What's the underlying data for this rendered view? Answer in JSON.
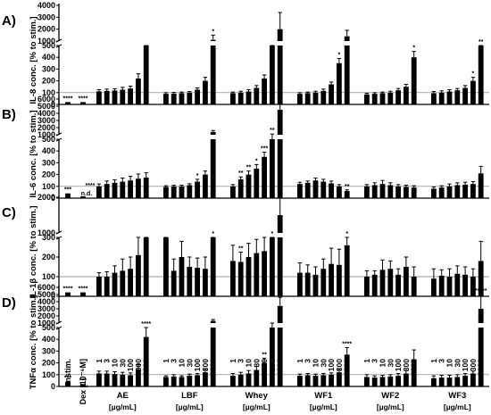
{
  "chart_data": {
    "type": "bar",
    "controls": [
      "unstim.",
      "Dex [10⁻⁶M]"
    ],
    "groups": [
      {
        "name": "AE",
        "unit": "[µg/mL]"
      },
      {
        "name": "LBF",
        "unit": "[µg/mL]"
      },
      {
        "name": "Whey",
        "unit": "[µg/mL]"
      },
      {
        "name": "WF1",
        "unit": "[µg/mL]"
      },
      {
        "name": "WF2",
        "unit": "[µg/mL]"
      },
      {
        "name": "WF3",
        "unit": "[µg/mL]"
      }
    ],
    "concentrations": [
      "1",
      "3",
      "10",
      "30",
      "100",
      "300",
      "1000"
    ],
    "panels": [
      {
        "letter": "A)",
        "ylabel": "IL-8 conc. [% to stim.]",
        "yticks_upper": [
          "1000",
          "2000",
          "3000",
          "4000"
        ],
        "yticks_lower": [
          "0",
          "100",
          "200",
          "300",
          "400",
          "500"
        ],
        "break": [
          500,
          1000
        ],
        "ymax": 4000,
        "ref": 100,
        "controls": [
          {
            "v": 20,
            "e": 0,
            "s": "****"
          },
          {
            "v": 20,
            "e": 0,
            "s": "****"
          }
        ],
        "groups": [
          {
            "v": [
              110,
              115,
              118,
              125,
              135,
              220,
              800
            ],
            "e": [
              15,
              15,
              15,
              20,
              20,
              40,
              150
            ],
            "s": [
              "",
              "",
              "",
              "",
              "",
              "",
              ""
            ]
          },
          {
            "v": [
              90,
              92,
              95,
              100,
              125,
              200,
              1100
            ],
            "e": [
              10,
              10,
              10,
              10,
              15,
              30,
              400
            ],
            "s": [
              "",
              "",
              "",
              "",
              "",
              "",
              "*"
            ]
          },
          {
            "v": [
              95,
              100,
              110,
              140,
              220,
              500,
              2000
            ],
            "e": [
              10,
              12,
              15,
              20,
              30,
              60,
              1400
            ],
            "s": [
              "",
              "",
              "",
              "",
              "",
              "",
              ""
            ]
          },
          {
            "v": [
              90,
              95,
              100,
              115,
              170,
              350,
              1400
            ],
            "e": [
              10,
              10,
              12,
              15,
              20,
              40,
              500
            ],
            "s": [
              "",
              "",
              "",
              "",
              "",
              "*",
              ""
            ]
          },
          {
            "v": [
              85,
              90,
              95,
              100,
              120,
              150,
              400
            ],
            "e": [
              10,
              10,
              10,
              12,
              15,
              20,
              50
            ],
            "s": [
              "",
              "",
              "",
              "",
              "",
              "",
              "*"
            ]
          },
          {
            "v": [
              95,
              100,
              110,
              120,
              140,
              200,
              500
            ],
            "e": [
              15,
              15,
              15,
              15,
              20,
              30,
              60
            ],
            "s": [
              "",
              "",
              "",
              "",
              "",
              "*",
              "**"
            ]
          }
        ]
      },
      {
        "letter": "B)",
        "ylabel": "IL-6 conc. [% to stim.]",
        "yticks_upper": [
          "1000",
          "2000",
          "3000",
          "4000",
          "5000",
          "6000"
        ],
        "yticks_lower": [
          "0",
          "100",
          "200",
          "300",
          "400",
          "500"
        ],
        "break": [
          500,
          1000
        ],
        "ymax": 6000,
        "ref": 100,
        "controls": [
          {
            "v": 40,
            "e": 0,
            "s": "***"
          },
          {
            "v": 15,
            "e": 0,
            "s": "****",
            "nd": "n.d."
          }
        ],
        "groups": [
          {
            "v": [
              100,
              120,
              130,
              140,
              150,
              165,
              175
            ],
            "e": [
              20,
              25,
              25,
              30,
              35,
              40,
              40
            ],
            "s": [
              "",
              "",
              "",
              "",
              "",
              "",
              ""
            ]
          },
          {
            "v": [
              95,
              100,
              100,
              110,
              140,
              200,
              1400
            ],
            "e": [
              10,
              10,
              10,
              12,
              20,
              30,
              200
            ],
            "s": [
              "",
              "",
              "",
              "",
              "*",
              "",
              ""
            ]
          },
          {
            "v": [
              100,
              160,
              200,
              250,
              350,
              900,
              4500
            ],
            "e": [
              15,
              20,
              30,
              35,
              40,
              200,
              1500
            ],
            "s": [
              "",
              "**",
              "**",
              "*",
              "***",
              "**",
              "*"
            ]
          },
          {
            "v": [
              120,
              130,
              150,
              140,
              125,
              100,
              60
            ],
            "e": [
              15,
              15,
              20,
              20,
              20,
              15,
              10
            ],
            "s": [
              "",
              "",
              "",
              "",
              "",
              "",
              "**"
            ]
          },
          {
            "v": [
              100,
              110,
              120,
              110,
              100,
              95,
              90
            ],
            "e": [
              15,
              20,
              30,
              20,
              15,
              15,
              15
            ],
            "s": [
              "",
              "",
              "",
              "",
              "",
              "",
              ""
            ]
          },
          {
            "v": [
              80,
              90,
              100,
              110,
              115,
              120,
              210
            ],
            "e": [
              15,
              15,
              20,
              20,
              20,
              20,
              60
            ],
            "s": [
              "",
              "",
              "",
              "",
              "",
              "",
              ""
            ]
          }
        ]
      },
      {
        "letter": "C)",
        "ylabel": "IL-1β conc. [% to stim.]",
        "yticks_upper": [
          "1000",
          "2000"
        ],
        "yticks_lower": [
          "0",
          "100",
          "200",
          "300"
        ],
        "break": [
          300,
          1000
        ],
        "ymax": 2000,
        "ref": 100,
        "controls": [
          {
            "v": 20,
            "e": 0,
            "s": "****"
          },
          {
            "v": 20,
            "e": 0,
            "s": "****"
          }
        ],
        "groups": [
          {
            "v": [
              100,
              100,
              120,
              130,
              140,
              210,
              500
            ],
            "e": [
              20,
              25,
              35,
              60,
              60,
              90,
              100
            ],
            "s": [
              "",
              "",
              "",
              "",
              "",
              "",
              ""
            ]
          },
          {
            "v": [
              300,
              130,
              200,
              150,
              145,
              140,
              300
            ],
            "e": [
              300,
              60,
              80,
              50,
              50,
              60,
              100
            ],
            "s": [
              "",
              "",
              "",
              "",
              "",
              "",
              "*"
            ]
          },
          {
            "v": [
              180,
              175,
              200,
              220,
              230,
              600,
              1500
            ],
            "e": [
              80,
              50,
              70,
              70,
              90,
              150,
              700
            ],
            "s": [
              "",
              "**",
              "",
              "",
              "",
              "*",
              ""
            ]
          },
          {
            "v": [
              120,
              120,
              110,
              140,
              165,
              160,
              260
            ],
            "e": [
              50,
              40,
              40,
              50,
              80,
              80,
              40
            ],
            "s": [
              "",
              "",
              "",
              "",
              "",
              "",
              "*"
            ]
          },
          {
            "v": [
              100,
              110,
              135,
              140,
              110,
              150,
              100
            ],
            "e": [
              30,
              20,
              50,
              40,
              30,
              50,
              50
            ],
            "s": [
              "",
              "",
              "",
              "",
              "",
              "",
              ""
            ]
          },
          {
            "v": [
              90,
              105,
              100,
              115,
              110,
              100,
              180
            ],
            "e": [
              50,
              30,
              40,
              40,
              40,
              40,
              100
            ],
            "s": [
              "",
              "",
              "",
              "",
              "",
              "",
              ""
            ]
          }
        ]
      },
      {
        "letter": "D)",
        "ylabel": "TNFα conc. [% to stim.]",
        "yticks_upper": [
          "1000",
          "2000",
          "3000",
          "4000",
          "5000",
          "6000"
        ],
        "yticks_lower": [
          "0",
          "100",
          "200",
          "300",
          "400",
          "500"
        ],
        "break": [
          500,
          1000
        ],
        "ymax": 6000,
        "ref": 100,
        "controls": [
          {
            "v": 40,
            "e": 0,
            "s": "***"
          },
          {
            "v": 20,
            "e": 0,
            "s": "***"
          }
        ],
        "groups": [
          {
            "v": [
              110,
              110,
              105,
              100,
              95,
              145,
              420
            ],
            "e": [
              20,
              20,
              20,
              20,
              20,
              40,
              120
            ],
            "s": [
              "",
              "",
              "",
              "",
              "",
              "",
              "****"
            ]
          },
          {
            "v": [
              80,
              85,
              80,
              90,
              95,
              120,
              1300
            ],
            "e": [
              10,
              15,
              10,
              15,
              15,
              20,
              200
            ],
            "s": [
              "",
              "",
              "",
              "",
              "",
              "",
              ""
            ]
          },
          {
            "v": [
              90,
              100,
              110,
              140,
              200,
              900,
              3400
            ],
            "e": [
              20,
              20,
              25,
              30,
              40,
              100,
              1200
            ],
            "s": [
              "",
              "",
              "",
              "",
              "**",
              "",
              ""
            ]
          },
          {
            "v": [
              90,
              95,
              90,
              95,
              100,
              120,
              270
            ],
            "e": [
              15,
              15,
              15,
              15,
              15,
              20,
              60
            ],
            "s": [
              "",
              "",
              "",
              "",
              "",
              "",
              "****"
            ]
          },
          {
            "v": [
              80,
              75,
              80,
              85,
              90,
              110,
              230
            ],
            "e": [
              20,
              15,
              15,
              15,
              20,
              25,
              80
            ],
            "s": [
              "",
              "",
              "",
              "",
              "",
              "",
              ""
            ]
          },
          {
            "v": [
              70,
              75,
              75,
              80,
              90,
              110,
              3000
            ],
            "e": [
              20,
              20,
              20,
              20,
              20,
              20,
              2000
            ],
            "s": [
              "",
              "",
              "",
              "",
              "",
              "",
              "*****"
            ]
          }
        ]
      }
    ]
  }
}
